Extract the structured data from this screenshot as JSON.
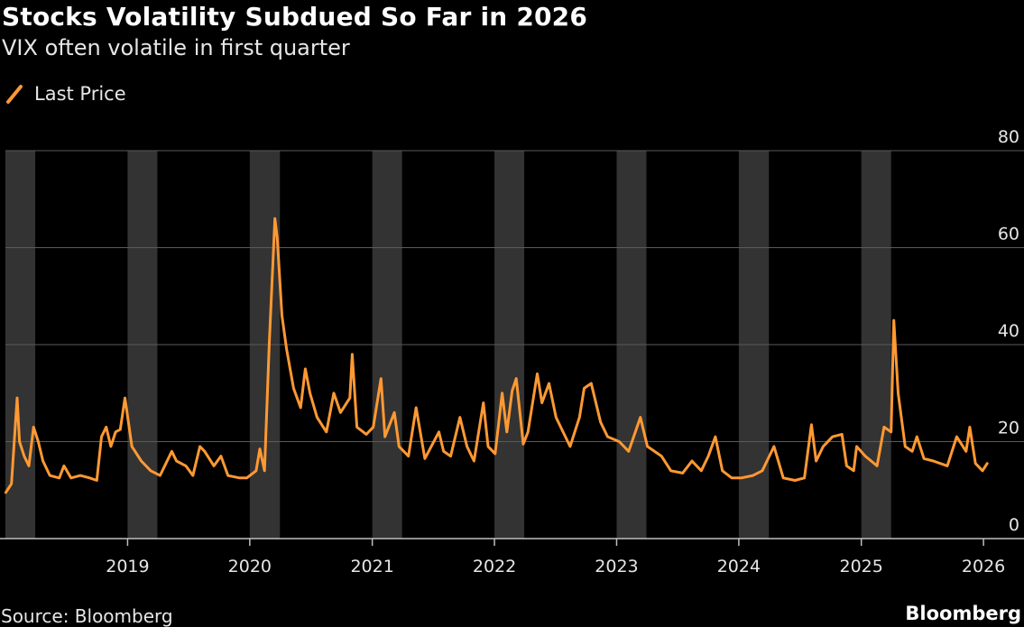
{
  "header": {
    "title": "Stocks Volatility Subdued So Far in 2026",
    "subtitle": "VIX often volatile in first quarter"
  },
  "footer": {
    "source": "Source: Bloomberg",
    "brand": "Bloomberg"
  },
  "colors": {
    "line": "#ff9933",
    "band": "#333333",
    "grid": "#5a5a5a",
    "axis": "#bfbfbf"
  },
  "chart_data": {
    "type": "line",
    "title": "Stocks Volatility Subdued So Far in 2026",
    "subtitle": "VIX often volatile in first quarter",
    "xlabel": "",
    "ylabel": "",
    "y_axis_side": "right",
    "ylim": [
      0,
      80
    ],
    "yticks": [
      0,
      20,
      40,
      60,
      80
    ],
    "xlim": [
      "2018-01-01",
      "2026-03-01"
    ],
    "xticks": [
      {
        "date": "2019-01-01",
        "label": "2019"
      },
      {
        "date": "2020-01-01",
        "label": "2020"
      },
      {
        "date": "2021-01-01",
        "label": "2021"
      },
      {
        "date": "2022-01-01",
        "label": "2022"
      },
      {
        "date": "2023-01-01",
        "label": "2023"
      },
      {
        "date": "2024-01-01",
        "label": "2024"
      },
      {
        "date": "2025-01-01",
        "label": "2025"
      },
      {
        "date": "2026-01-01",
        "label": "2026"
      }
    ],
    "grid": "horizontal",
    "legend": "top-left",
    "shaded_periods": [
      [
        "2018-01-01",
        "2018-03-31"
      ],
      [
        "2019-01-01",
        "2019-03-31"
      ],
      [
        "2020-01-01",
        "2020-03-31"
      ],
      [
        "2021-01-01",
        "2021-03-31"
      ],
      [
        "2022-01-01",
        "2022-03-31"
      ],
      [
        "2023-01-01",
        "2023-03-31"
      ],
      [
        "2024-01-01",
        "2024-03-31"
      ],
      [
        "2025-01-01",
        "2025-03-31"
      ]
    ],
    "series": [
      {
        "name": "Last Price",
        "points": [
          [
            "2018-01-02",
            9.5
          ],
          [
            "2018-01-19",
            11.3
          ],
          [
            "2018-02-05",
            29.0
          ],
          [
            "2018-02-12",
            20.0
          ],
          [
            "2018-02-26",
            17.0
          ],
          [
            "2018-03-12",
            15.0
          ],
          [
            "2018-03-26",
            23.0
          ],
          [
            "2018-04-09",
            20.0
          ],
          [
            "2018-04-23",
            16.0
          ],
          [
            "2018-05-14",
            13.0
          ],
          [
            "2018-06-11",
            12.5
          ],
          [
            "2018-06-25",
            15.0
          ],
          [
            "2018-07-16",
            12.5
          ],
          [
            "2018-08-13",
            13.0
          ],
          [
            "2018-09-10",
            12.5
          ],
          [
            "2018-10-01",
            12.0
          ],
          [
            "2018-10-15",
            21.0
          ],
          [
            "2018-10-29",
            23.0
          ],
          [
            "2018-11-12",
            19.0
          ],
          [
            "2018-11-26",
            22.0
          ],
          [
            "2018-12-10",
            22.5
          ],
          [
            "2018-12-24",
            29.0
          ],
          [
            "2019-01-14",
            19.0
          ],
          [
            "2019-02-11",
            16.0
          ],
          [
            "2019-03-11",
            14.0
          ],
          [
            "2019-04-08",
            13.0
          ],
          [
            "2019-05-13",
            18.0
          ],
          [
            "2019-05-27",
            16.0
          ],
          [
            "2019-06-24",
            15.0
          ],
          [
            "2019-07-15",
            13.0
          ],
          [
            "2019-08-05",
            19.0
          ],
          [
            "2019-08-19",
            18.0
          ],
          [
            "2019-09-16",
            15.0
          ],
          [
            "2019-10-07",
            17.0
          ],
          [
            "2019-10-28",
            13.0
          ],
          [
            "2019-12-02",
            12.5
          ],
          [
            "2019-12-23",
            12.5
          ],
          [
            "2020-01-20",
            14.0
          ],
          [
            "2020-01-31",
            18.5
          ],
          [
            "2020-02-14",
            14.0
          ],
          [
            "2020-02-28",
            40.0
          ],
          [
            "2020-03-16",
            66.0
          ],
          [
            "2020-03-23",
            62.0
          ],
          [
            "2020-04-06",
            46.0
          ],
          [
            "2020-04-20",
            39.0
          ],
          [
            "2020-05-11",
            31.0
          ],
          [
            "2020-06-01",
            27.0
          ],
          [
            "2020-06-15",
            35.0
          ],
          [
            "2020-06-29",
            30.0
          ],
          [
            "2020-07-20",
            25.0
          ],
          [
            "2020-08-17",
            22.0
          ],
          [
            "2020-09-08",
            30.0
          ],
          [
            "2020-09-28",
            26.0
          ],
          [
            "2020-10-26",
            29.0
          ],
          [
            "2020-11-02",
            38.0
          ],
          [
            "2020-11-16",
            23.0
          ],
          [
            "2020-12-14",
            21.5
          ],
          [
            "2021-01-04",
            23.0
          ],
          [
            "2021-01-27",
            33.0
          ],
          [
            "2021-02-08",
            21.0
          ],
          [
            "2021-03-08",
            26.0
          ],
          [
            "2021-03-22",
            19.0
          ],
          [
            "2021-04-19",
            17.0
          ],
          [
            "2021-05-12",
            27.0
          ],
          [
            "2021-06-07",
            16.5
          ],
          [
            "2021-07-19",
            22.0
          ],
          [
            "2021-08-02",
            18.0
          ],
          [
            "2021-08-23",
            17.0
          ],
          [
            "2021-09-20",
            25.0
          ],
          [
            "2021-10-11",
            19.0
          ],
          [
            "2021-11-01",
            16.0
          ],
          [
            "2021-11-29",
            28.0
          ],
          [
            "2021-12-13",
            19.0
          ],
          [
            "2022-01-03",
            17.5
          ],
          [
            "2022-01-24",
            30.0
          ],
          [
            "2022-02-07",
            22.0
          ],
          [
            "2022-02-23",
            30.5
          ],
          [
            "2022-03-07",
            33.0
          ],
          [
            "2022-03-28",
            19.5
          ],
          [
            "2022-04-11",
            22.0
          ],
          [
            "2022-05-09",
            34.0
          ],
          [
            "2022-05-23",
            28.0
          ],
          [
            "2022-06-13",
            32.0
          ],
          [
            "2022-07-04",
            25.0
          ],
          [
            "2022-08-15",
            19.0
          ],
          [
            "2022-09-12",
            25.0
          ],
          [
            "2022-09-26",
            31.0
          ],
          [
            "2022-10-17",
            32.0
          ],
          [
            "2022-11-14",
            24.0
          ],
          [
            "2022-12-05",
            21.0
          ],
          [
            "2023-01-09",
            20.0
          ],
          [
            "2023-02-06",
            18.0
          ],
          [
            "2023-03-13",
            25.0
          ],
          [
            "2023-04-03",
            19.0
          ],
          [
            "2023-05-15",
            17.0
          ],
          [
            "2023-06-12",
            14.0
          ],
          [
            "2023-07-17",
            13.5
          ],
          [
            "2023-08-14",
            16.0
          ],
          [
            "2023-09-11",
            14.0
          ],
          [
            "2023-10-02",
            17.0
          ],
          [
            "2023-10-23",
            21.0
          ],
          [
            "2023-11-13",
            14.0
          ],
          [
            "2023-12-11",
            12.5
          ],
          [
            "2024-01-08",
            12.5
          ],
          [
            "2024-02-12",
            13.0
          ],
          [
            "2024-03-11",
            14.0
          ],
          [
            "2024-04-15",
            19.0
          ],
          [
            "2024-05-13",
            12.5
          ],
          [
            "2024-06-17",
            12.0
          ],
          [
            "2024-07-15",
            12.5
          ],
          [
            "2024-08-05",
            23.5
          ],
          [
            "2024-08-19",
            16.0
          ],
          [
            "2024-09-09",
            19.0
          ],
          [
            "2024-10-07",
            21.0
          ],
          [
            "2024-11-04",
            21.5
          ],
          [
            "2024-11-18",
            15.0
          ],
          [
            "2024-12-09",
            14.0
          ],
          [
            "2024-12-18",
            19.0
          ],
          [
            "2025-01-13",
            17.0
          ],
          [
            "2025-02-17",
            15.0
          ],
          [
            "2025-03-10",
            23.0
          ],
          [
            "2025-03-31",
            22.0
          ],
          [
            "2025-04-08",
            45.0
          ],
          [
            "2025-04-21",
            30.0
          ],
          [
            "2025-05-12",
            19.0
          ],
          [
            "2025-06-02",
            18.0
          ],
          [
            "2025-06-16",
            21.0
          ],
          [
            "2025-07-07",
            16.5
          ],
          [
            "2025-08-04",
            16.0
          ],
          [
            "2025-09-15",
            15.0
          ],
          [
            "2025-10-13",
            21.0
          ],
          [
            "2025-11-10",
            18.0
          ],
          [
            "2025-11-21",
            23.0
          ],
          [
            "2025-12-08",
            15.5
          ],
          [
            "2025-12-29",
            14.0
          ],
          [
            "2026-01-12",
            15.5
          ]
        ]
      }
    ]
  }
}
